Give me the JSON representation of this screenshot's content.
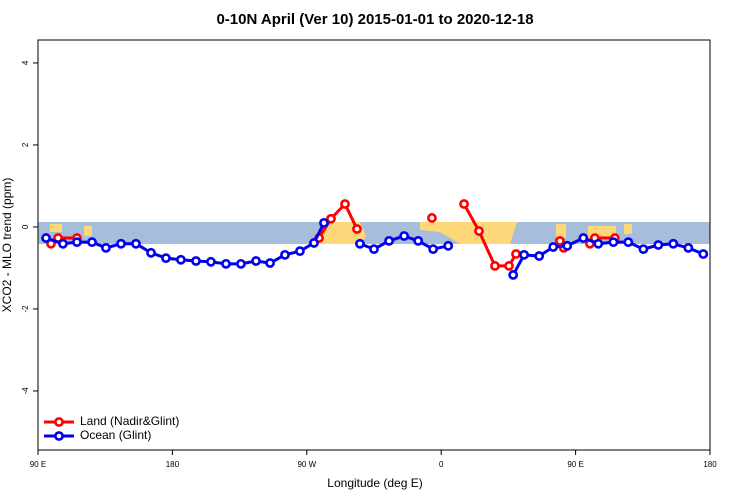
{
  "chart_data": {
    "type": "line",
    "title": "0-10N April (Ver 10)   2015-01-01 to 2020-12-18",
    "x_label": "Longitude (deg E)",
    "y_label": "XCO2 - MLO trend (ppm)",
    "xlim": [
      90,
      540
    ],
    "xticks": [
      {
        "value": 90,
        "label": "90 E"
      },
      180,
      {
        "value": 270,
        "label": "90 W"
      },
      {
        "value": 360,
        "label": "0"
      },
      {
        "value": 450,
        "label": "90 E"
      },
      {
        "value": 540,
        "label": "180"
      }
    ],
    "ylim": [
      -5.44,
      4.56
    ],
    "yticks": [
      -4,
      -2,
      0,
      2,
      4
    ],
    "legend": "bottom-left",
    "series": [
      {
        "name": "Land (Nadir&Glint)",
        "color": "#ff0000",
        "x": [
          98.7,
          103.4,
          116.1,
          196,
          278.2,
          286.2,
          295.6,
          303.6,
          330,
          353.8,
          365,
          375.3,
          385.3,
          396.0,
          405.4,
          410.1,
          425,
          439.5,
          442.1,
          450,
          459.6,
          462.9,
          476.3
        ],
        "values": [
          -0.41,
          -0.27,
          -0.27,
          null,
          -0.27,
          0.2,
          0.56,
          -0.05,
          null,
          0.22,
          null,
          0.56,
          -0.1,
          -0.95,
          -0.95,
          -0.66,
          null,
          -0.34,
          -0.51,
          null,
          -0.41,
          -0.27,
          -0.27
        ]
      },
      {
        "name": "Ocean (Glint)",
        "color": "#0000ee",
        "x": [
          95.4,
          106.7,
          116.1,
          126.2,
          135.5,
          145.6,
          155.6,
          165.7,
          175.7,
          185.7,
          195.8,
          205.8,
          215.9,
          225.9,
          236.0,
          245.4,
          255.4,
          265.4,
          274.8,
          281.5,
          293,
          305.6,
          315.0,
          325.1,
          335.2,
          344.6,
          354.6,
          364.7,
          385,
          408.2,
          415.5,
          425.6,
          435.0,
          444.4,
          455.2,
          465.2,
          475.3,
          485.3,
          495.4,
          505.4,
          515.4,
          525.5,
          535.5
        ],
        "values": [
          -0.27,
          -0.41,
          -0.37,
          -0.37,
          -0.51,
          -0.41,
          -0.41,
          -0.63,
          -0.76,
          -0.8,
          -0.83,
          -0.85,
          -0.9,
          -0.9,
          -0.83,
          -0.88,
          -0.68,
          -0.59,
          -0.39,
          0.1,
          null,
          -0.41,
          -0.54,
          -0.34,
          -0.22,
          -0.34,
          -0.54,
          -0.46,
          null,
          -1.17,
          -0.68,
          -0.71,
          -0.49,
          -0.46,
          -0.27,
          -0.41,
          -0.37,
          -0.37,
          -0.54,
          -0.44,
          -0.41,
          -0.51,
          -0.66
        ]
      }
    ]
  }
}
